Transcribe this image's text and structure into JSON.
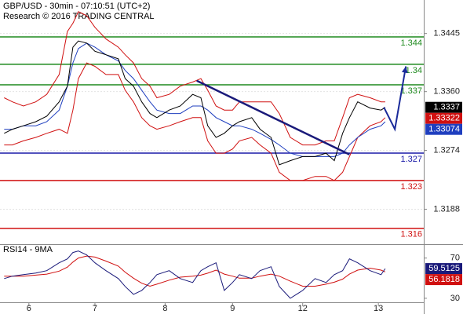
{
  "chart_data": [
    {
      "type": "line",
      "title": "GBP/USD - 30min - 07:10:51 (UTC+2)",
      "subtitle": "Research © 2016 TRADING CENTRAL",
      "x": [
        3,
        9,
        17,
        26,
        34,
        43,
        49,
        53,
        57,
        63,
        69,
        77,
        86,
        91,
        97,
        103,
        109,
        114,
        123,
        131,
        140,
        146,
        151,
        157,
        163,
        169,
        174,
        183,
        189,
        197,
        203,
        211,
        220,
        229,
        237,
        243,
        249,
        254,
        260,
        269,
        277,
        280
      ],
      "xlim": [
        0,
        308
      ],
      "xticks": [
        {
          "value": 21,
          "label": "6"
        },
        {
          "value": 69,
          "label": "7"
        },
        {
          "value": 120,
          "label": "8"
        },
        {
          "value": 169,
          "label": "9"
        },
        {
          "value": 220,
          "label": "12"
        },
        {
          "value": 275,
          "label": "13"
        }
      ],
      "ylim": [
        1.3138,
        1.3494
      ],
      "yticks": [
        1.3445,
        {
          "value": 1.336,
          "label": "1.3360"
        },
        1.3274,
        1.3188
      ],
      "grid": true,
      "series": [
        {
          "color": "#d01010",
          "values": [
            1.3351,
            1.3345,
            1.3339,
            1.3345,
            1.3356,
            1.3385,
            1.3448,
            1.346,
            1.3477,
            1.3471,
            1.3454,
            1.3437,
            1.3425,
            1.3414,
            1.3402,
            1.3379,
            1.3368,
            1.3351,
            1.3356,
            1.3368,
            1.3374,
            1.3379,
            1.3362,
            1.3339,
            1.3333,
            1.3333,
            1.3345,
            1.3345,
            1.3345,
            1.3345,
            1.3328,
            1.3293,
            1.3282,
            1.3282,
            1.3288,
            1.3288,
            1.3322,
            1.3351,
            1.3356,
            1.3351,
            1.3345,
            1.3345
          ]
        },
        {
          "color": "#d01010",
          "values": [
            1.3282,
            1.3282,
            1.3288,
            1.3293,
            1.3299,
            1.3305,
            1.3299,
            1.3333,
            1.3379,
            1.3402,
            1.3397,
            1.3385,
            1.3385,
            1.3362,
            1.3345,
            1.3322,
            1.331,
            1.3305,
            1.331,
            1.3316,
            1.3322,
            1.3322,
            1.3288,
            1.327,
            1.327,
            1.3276,
            1.3288,
            1.3293,
            1.3282,
            1.327,
            1.3242,
            1.323,
            1.323,
            1.3236,
            1.3236,
            1.323,
            1.3242,
            1.3265,
            1.3293,
            1.331,
            1.3316,
            1.3322
          ]
        },
        {
          "color": "#1f3fbf",
          "values": [
            1.3305,
            1.3305,
            1.331,
            1.331,
            1.3316,
            1.3333,
            1.3368,
            1.3402,
            1.3423,
            1.3431,
            1.3425,
            1.3414,
            1.3405,
            1.3391,
            1.3379,
            1.3362,
            1.3345,
            1.3333,
            1.3328,
            1.3328,
            1.3339,
            1.3339,
            1.3333,
            1.3322,
            1.3316,
            1.331,
            1.331,
            1.3305,
            1.3299,
            1.329,
            1.3282,
            1.327,
            1.3265,
            1.3265,
            1.3265,
            1.3265,
            1.327,
            1.3282,
            1.3293,
            1.3305,
            1.331,
            1.3316
          ]
        },
        {
          "color": "#000000",
          "values": [
            1.3299,
            1.3305,
            1.331,
            1.3316,
            1.3324,
            1.3345,
            1.3368,
            1.3425,
            1.3434,
            1.3431,
            1.3419,
            1.3414,
            1.3408,
            1.3379,
            1.3368,
            1.3345,
            1.3328,
            1.3322,
            1.3333,
            1.3339,
            1.3356,
            1.3351,
            1.331,
            1.3293,
            1.3299,
            1.331,
            1.3316,
            1.3322,
            1.3305,
            1.3293,
            1.3253,
            1.3259,
            1.3265,
            1.3265,
            1.327,
            1.3259,
            1.3299,
            1.3322,
            1.3345,
            1.3336,
            1.3333,
            1.3337
          ]
        }
      ],
      "levels": [
        {
          "value": 1.344,
          "color": "#1e8a1e"
        },
        {
          "value": 1.34,
          "color": "#1e8a1e"
        },
        {
          "value": 1.337,
          "color": "#1e8a1e"
        },
        {
          "value": 1.327,
          "color": "#1a1aa8"
        },
        {
          "value": 1.323,
          "color": "#d01010"
        },
        {
          "value": 1.316,
          "color": "#d01010"
        }
      ],
      "trendline": {
        "color": "#1a1a7a",
        "x": [
          143,
          254
        ],
        "values": [
          1.3376,
          1.3268
        ]
      },
      "forecast": {
        "color": "#1a2a9a",
        "x": [
          279,
          287,
          295
        ],
        "values": [
          1.3337,
          1.3305,
          1.3397
        ]
      },
      "price_tags": [
        {
          "value": 1.3337,
          "color": "#000000"
        },
        {
          "value": 1.33322,
          "color": "#d01010"
        },
        {
          "value": 1.33074,
          "color": "#1f3fbf"
        }
      ]
    },
    {
      "type": "line",
      "title": "RSI14 - 9MA",
      "x": [
        3,
        9,
        17,
        26,
        34,
        43,
        49,
        53,
        57,
        63,
        69,
        77,
        86,
        91,
        97,
        103,
        109,
        114,
        123,
        131,
        140,
        146,
        151,
        157,
        163,
        169,
        174,
        183,
        189,
        197,
        203,
        211,
        220,
        229,
        237,
        243,
        249,
        254,
        260,
        269,
        277,
        280
      ],
      "xlim": [
        0,
        308
      ],
      "ylim": [
        26,
        83
      ],
      "yticks": [
        70,
        30
      ],
      "series": [
        {
          "color": "#d01010",
          "values": [
            52,
            52,
            52,
            53,
            54,
            57,
            61,
            66,
            70,
            72,
            71,
            67,
            62,
            56,
            50,
            45,
            42,
            44,
            48,
            51,
            52,
            53,
            55,
            58,
            54,
            52,
            50,
            50,
            52,
            54,
            52,
            47,
            42,
            42,
            44,
            46,
            49,
            54,
            58,
            60,
            58,
            56.2
          ]
        },
        {
          "color": "#1a1a7a",
          "values": [
            49.6,
            52,
            53.5,
            55.1,
            57.5,
            65.3,
            69.2,
            75.5,
            77,
            73.1,
            65.3,
            57.5,
            49.6,
            41.8,
            33.9,
            37.8,
            45.7,
            53.5,
            57.5,
            49.6,
            45.7,
            57.5,
            61.4,
            65.3,
            37.8,
            45.7,
            53.5,
            49.6,
            57.5,
            61.4,
            41.8,
            30,
            37.8,
            49.6,
            45.7,
            53.5,
            57.5,
            69.2,
            65.3,
            57.5,
            53.5,
            59.5
          ]
        }
      ],
      "price_tags": [
        {
          "value": 59.5125,
          "color": "#1a1a7a"
        },
        {
          "value": 56.1818,
          "color": "#d01010"
        }
      ]
    }
  ]
}
